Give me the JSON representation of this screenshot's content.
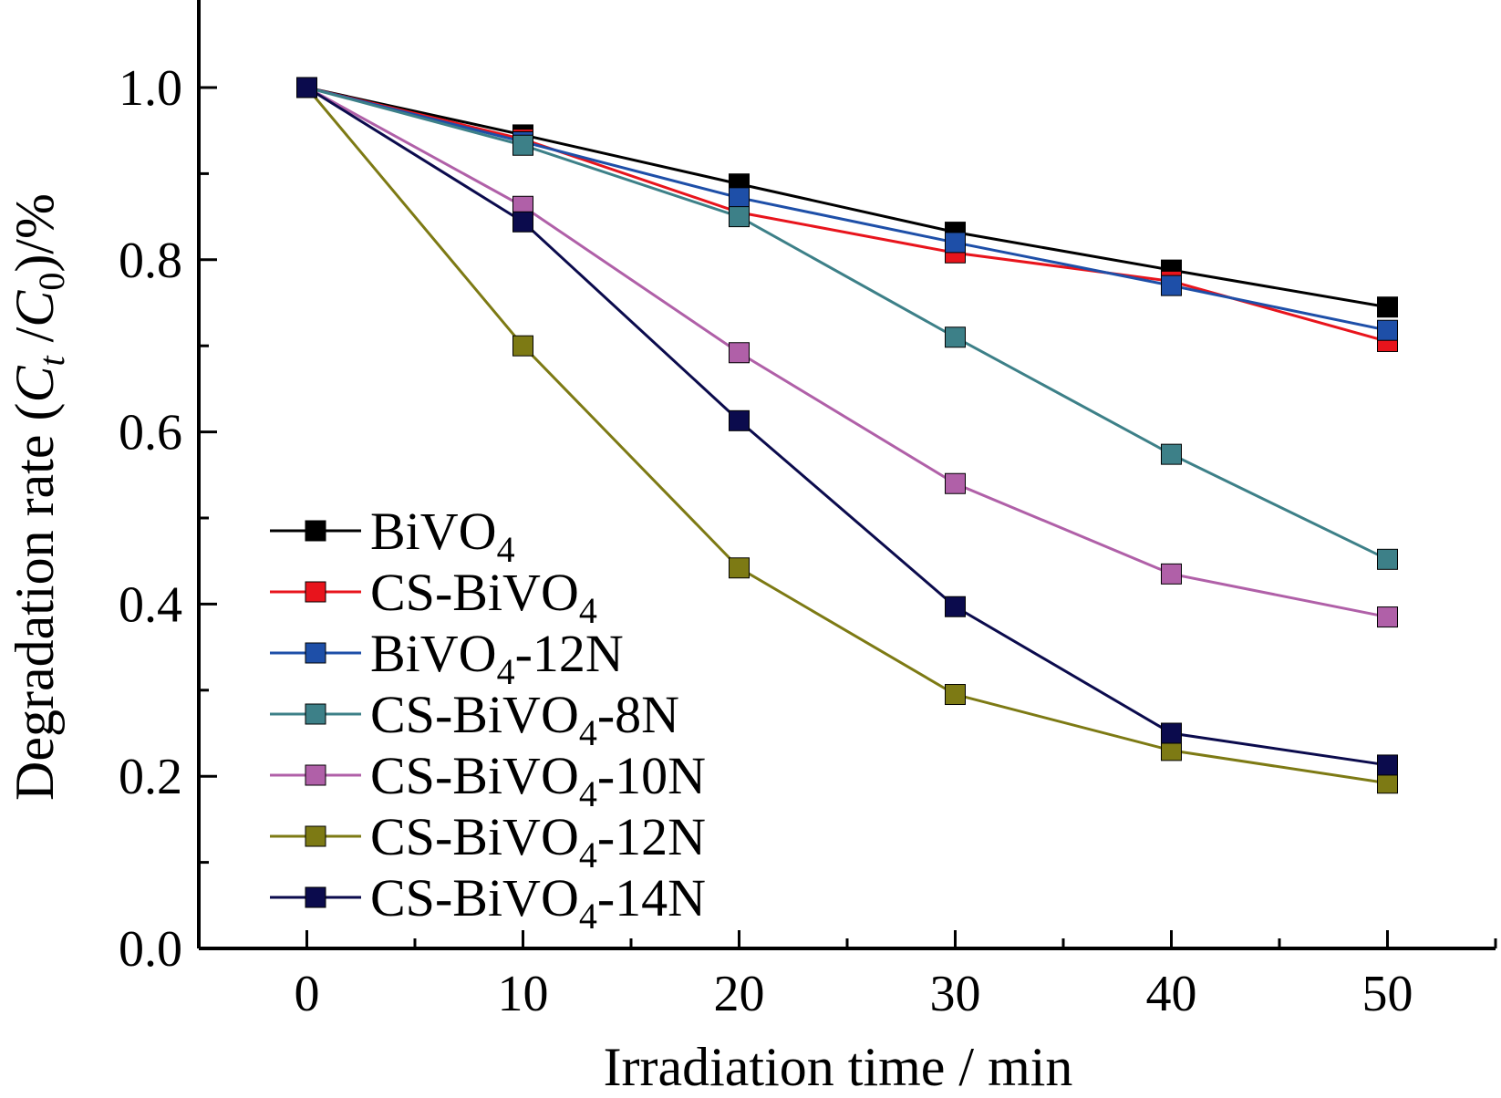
{
  "chart_data": {
    "type": "line",
    "xlabel": "Irradiation time / min",
    "ylabel": {
      "prefix": "Degradation rate (",
      "c1": "C",
      "s1": "t",
      "slash": " /",
      "c2": "C",
      "s2": "0",
      "suffix": ")/%"
    },
    "xlim": [
      -5,
      55
    ],
    "ylim": [
      0,
      1.1
    ],
    "x_ticks": [
      "0",
      "10",
      "20",
      "30",
      "40",
      "50"
    ],
    "y_ticks": [
      "0.0",
      "0.2",
      "0.4",
      "0.6",
      "0.8",
      "1.0"
    ],
    "grid": false,
    "legend_position": "bottom-left",
    "x": [
      0,
      10,
      20,
      30,
      40,
      50
    ],
    "series": [
      {
        "name": "BiVO4",
        "label_main": "BiVO",
        "label_sub": "4",
        "label_tail": "",
        "color": "#000000",
        "values": [
          1.0,
          0.945,
          0.888,
          0.832,
          0.788,
          0.745
        ]
      },
      {
        "name": "CS-BiVO4",
        "label_main": "CS-BiVO",
        "label_sub": "4",
        "label_tail": "",
        "color": "#e8141c",
        "values": [
          1.0,
          0.94,
          0.855,
          0.808,
          0.775,
          0.705
        ]
      },
      {
        "name": "BiVO4-12N",
        "label_main": "BiVO",
        "label_sub": "4",
        "label_tail": "-12N",
        "color": "#1e4fa8",
        "values": [
          1.0,
          0.937,
          0.872,
          0.82,
          0.77,
          0.718
        ]
      },
      {
        "name": "CS-BiVO4-8N",
        "label_main": "CS-BiVO",
        "label_sub": "4",
        "label_tail": "-8N",
        "color": "#3d8088",
        "values": [
          1.0,
          0.933,
          0.85,
          0.71,
          0.574,
          0.452
        ]
      },
      {
        "name": "CS-BiVO4-10N",
        "label_main": "CS-BiVO",
        "label_sub": "4",
        "label_tail": "-10N",
        "color": "#b060a8",
        "values": [
          1.0,
          0.862,
          0.692,
          0.54,
          0.435,
          0.385
        ]
      },
      {
        "name": "CS-BiVO4-12N",
        "label_main": "CS-BiVO",
        "label_sub": "4",
        "label_tail": "-12N",
        "color": "#7d7a14",
        "values": [
          1.0,
          0.7,
          0.442,
          0.295,
          0.23,
          0.192
        ]
      },
      {
        "name": "CS-BiVO4-14N",
        "label_main": "CS-BiVO",
        "label_sub": "4",
        "label_tail": "-14N",
        "color": "#0b0b4d",
        "values": [
          1.0,
          0.844,
          0.613,
          0.397,
          0.25,
          0.213
        ]
      }
    ]
  }
}
